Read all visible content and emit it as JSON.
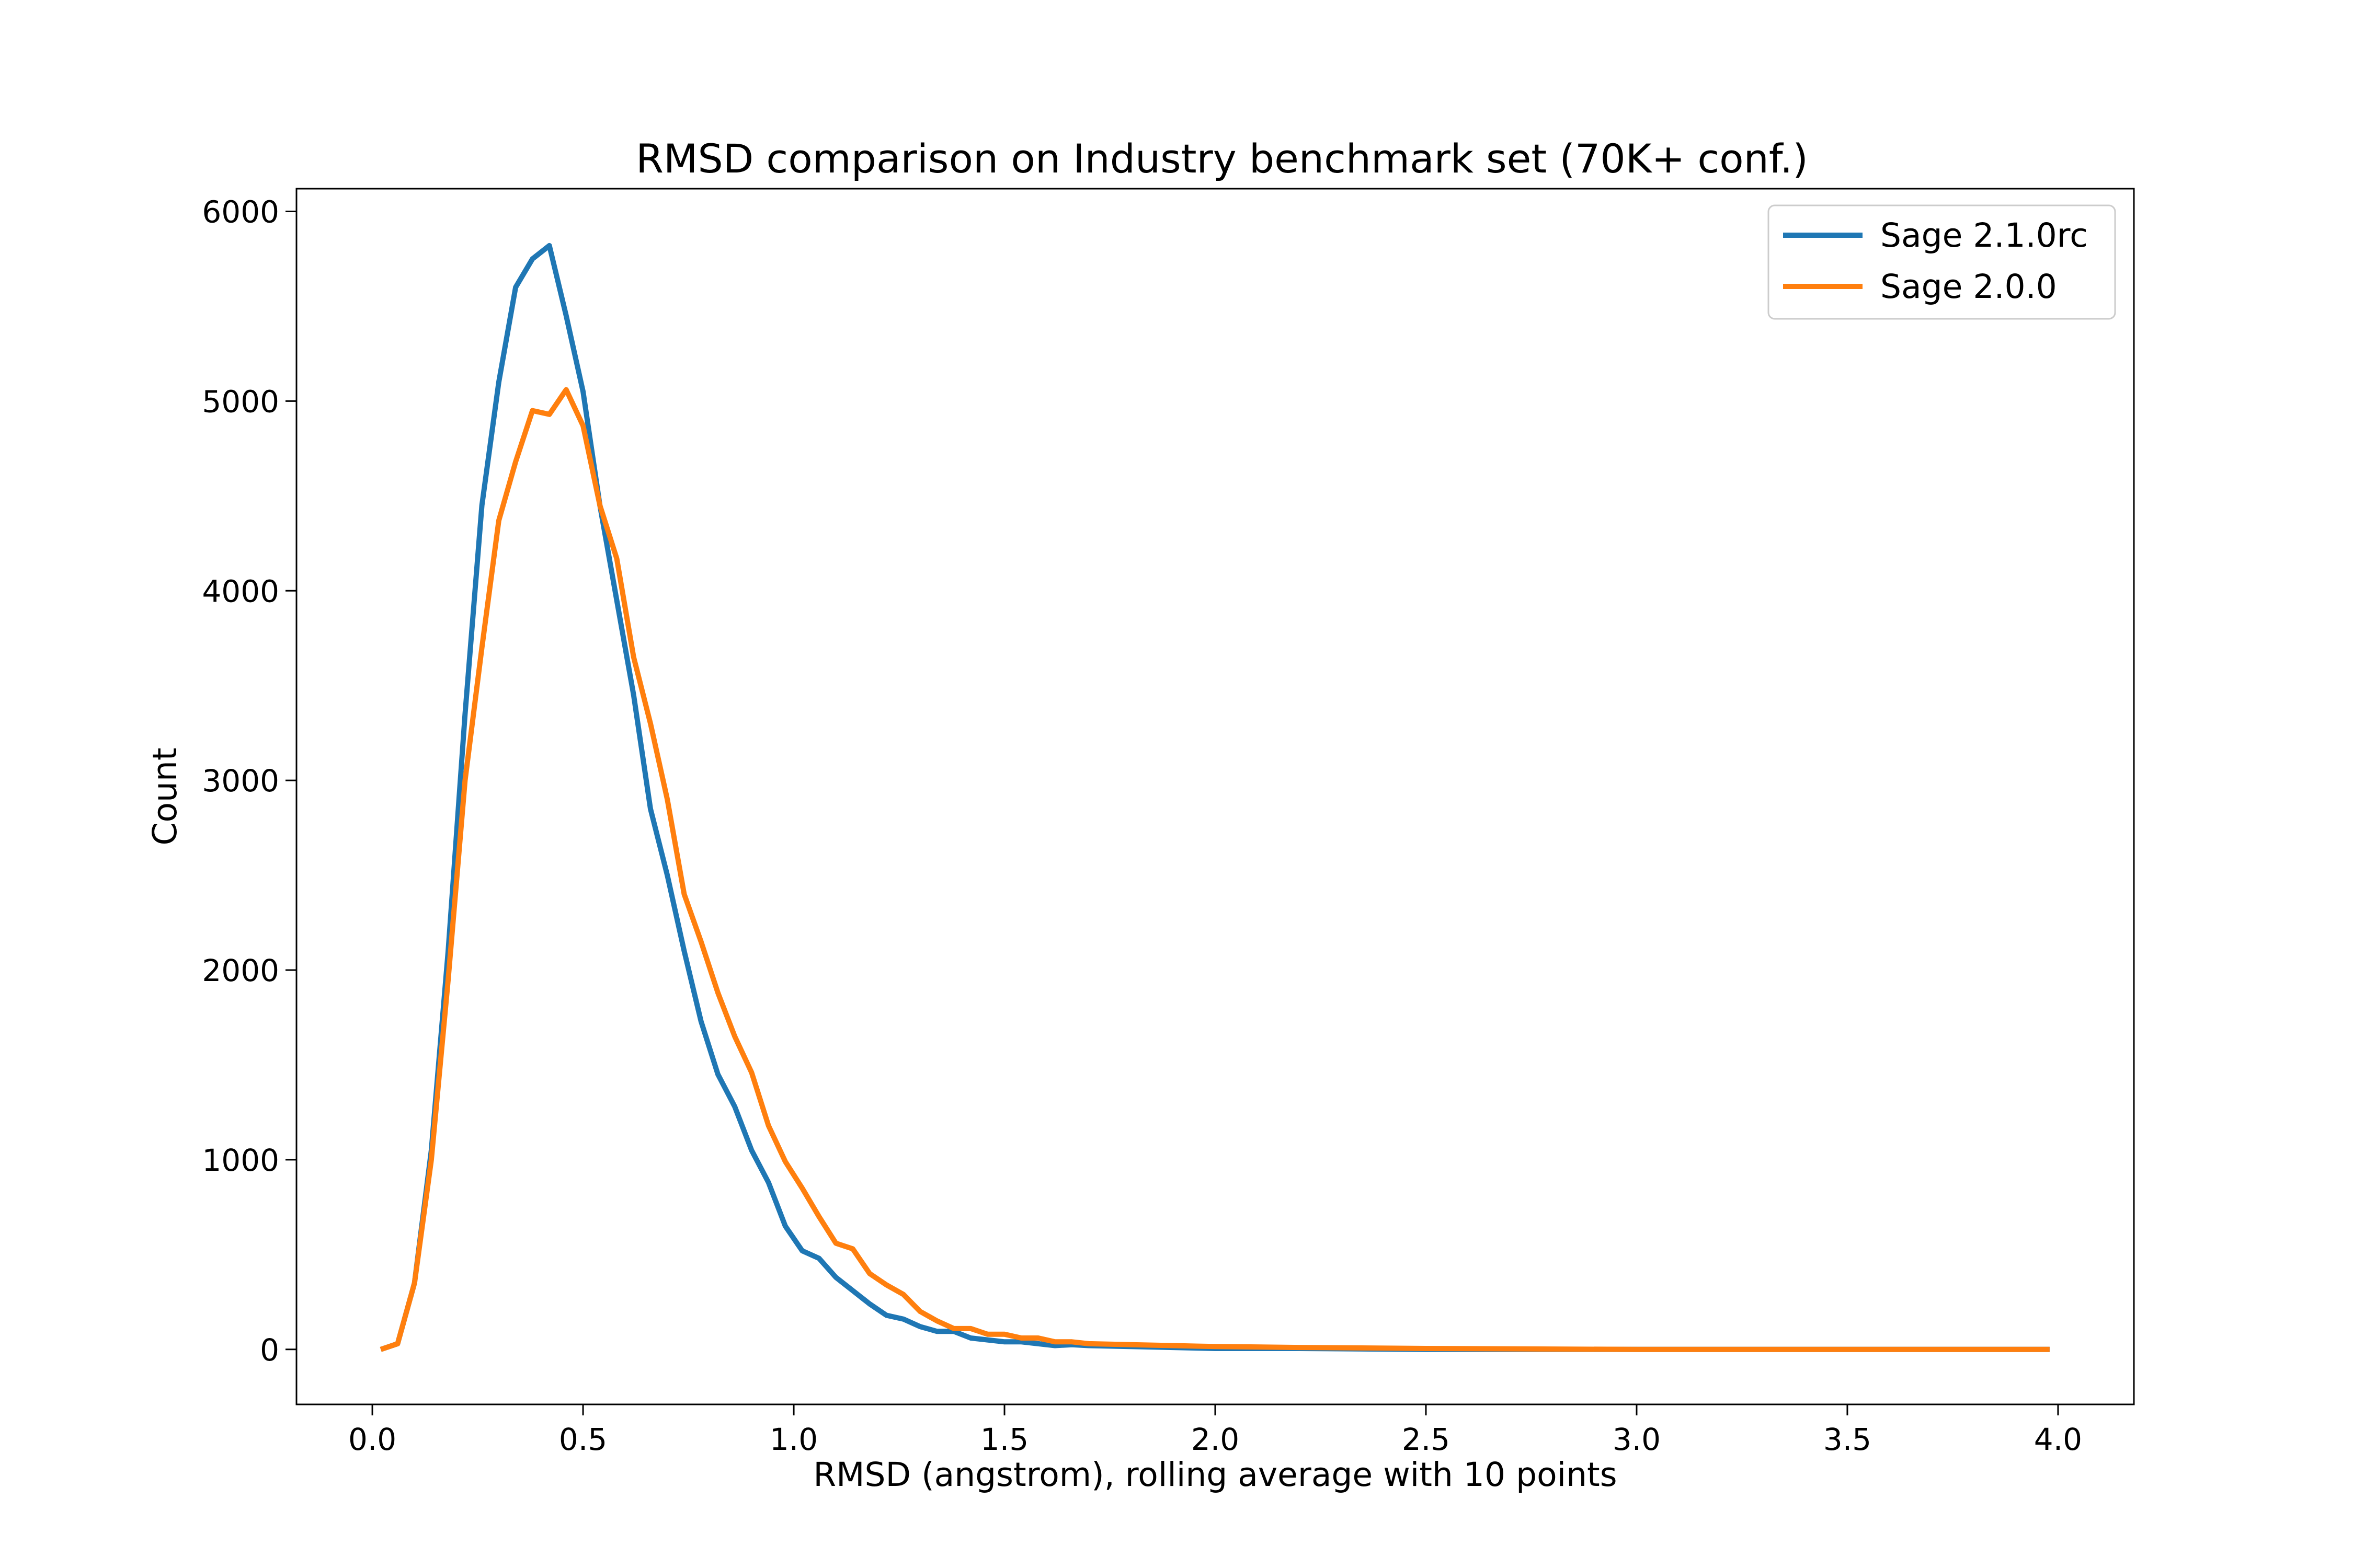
{
  "chart_data": {
    "type": "line",
    "title": "RMSD comparison on Industry benchmark set (70K+ conf.)",
    "xlabel": "RMSD (angstrom), rolling average with 10 points",
    "ylabel": "Count",
    "xlim": [
      -0.18,
      4.18
    ],
    "ylim": [
      -290,
      6120
    ],
    "xticks": [
      0.0,
      0.5,
      1.0,
      1.5,
      2.0,
      2.5,
      3.0,
      3.5,
      4.0
    ],
    "xtick_labels": [
      "0.0",
      "0.5",
      "1.0",
      "1.5",
      "2.0",
      "2.5",
      "3.0",
      "3.5",
      "4.0"
    ],
    "yticks": [
      0,
      1000,
      2000,
      3000,
      4000,
      5000,
      6000
    ],
    "ytick_labels": [
      "0",
      "1000",
      "2000",
      "3000",
      "4000",
      "5000",
      "6000"
    ],
    "grid": false,
    "legend_position": "top-right",
    "series": [
      {
        "name": "Sage 2.1.0rc",
        "color": "#1f77b4",
        "x": [
          0.02,
          0.06,
          0.1,
          0.14,
          0.18,
          0.22,
          0.26,
          0.3,
          0.34,
          0.38,
          0.42,
          0.46,
          0.5,
          0.54,
          0.58,
          0.62,
          0.66,
          0.7,
          0.74,
          0.78,
          0.82,
          0.86,
          0.9,
          0.94,
          0.98,
          1.02,
          1.06,
          1.1,
          1.14,
          1.18,
          1.22,
          1.26,
          1.3,
          1.34,
          1.38,
          1.42,
          1.46,
          1.5,
          1.54,
          1.58,
          1.62,
          1.66,
          1.7,
          1.8,
          1.9,
          2.0,
          2.2,
          2.5,
          3.0,
          3.5,
          3.98
        ],
        "y": [
          0,
          30,
          350,
          1050,
          2100,
          3350,
          4450,
          5100,
          5600,
          5750,
          5820,
          5450,
          5050,
          4450,
          3950,
          3450,
          2850,
          2500,
          2100,
          1730,
          1450,
          1280,
          1050,
          880,
          650,
          520,
          480,
          380,
          310,
          240,
          180,
          160,
          120,
          95,
          95,
          60,
          50,
          40,
          40,
          30,
          20,
          25,
          20,
          15,
          10,
          5,
          5,
          0,
          0,
          0,
          0
        ]
      },
      {
        "name": "Sage 2.0.0",
        "color": "#ff7f0e",
        "x": [
          0.02,
          0.06,
          0.1,
          0.14,
          0.18,
          0.22,
          0.26,
          0.3,
          0.34,
          0.38,
          0.42,
          0.46,
          0.5,
          0.54,
          0.58,
          0.62,
          0.66,
          0.7,
          0.74,
          0.78,
          0.82,
          0.86,
          0.9,
          0.94,
          0.98,
          1.02,
          1.06,
          1.1,
          1.14,
          1.18,
          1.22,
          1.26,
          1.3,
          1.34,
          1.38,
          1.42,
          1.46,
          1.5,
          1.54,
          1.58,
          1.62,
          1.66,
          1.7,
          1.8,
          1.9,
          2.0,
          2.2,
          2.5,
          3.0,
          3.5,
          3.98
        ],
        "y": [
          0,
          30,
          350,
          1000,
          1950,
          3000,
          3700,
          4370,
          4680,
          4950,
          4930,
          5060,
          4870,
          4450,
          4170,
          3650,
          3300,
          2900,
          2400,
          2150,
          1880,
          1650,
          1460,
          1180,
          990,
          850,
          700,
          560,
          530,
          400,
          340,
          290,
          200,
          150,
          110,
          110,
          80,
          80,
          60,
          60,
          40,
          40,
          30,
          25,
          20,
          15,
          10,
          5,
          0,
          0,
          0
        ]
      }
    ]
  }
}
